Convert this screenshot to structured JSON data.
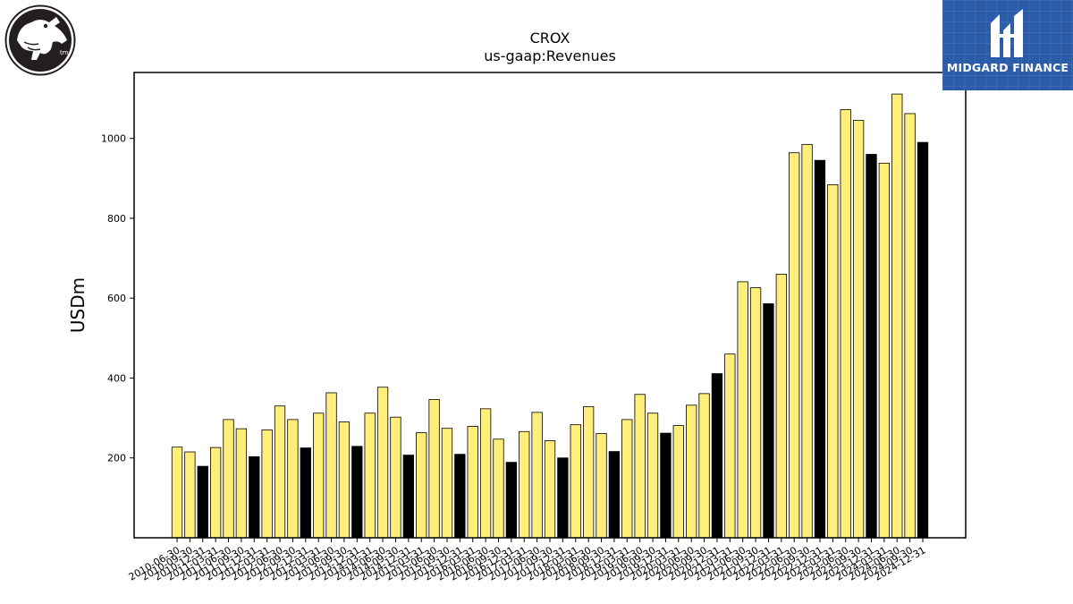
{
  "logos": {
    "right_brand": "MIDGARD FINANCE",
    "left_mark": "tm"
  },
  "colors": {
    "bar_default": "#ffee7a",
    "bar_highlight": "#000000",
    "bar_edge": "#000000",
    "brand_blue": "#2a5caa"
  },
  "chart_data": {
    "type": "bar",
    "title": "CROX",
    "subtitle": "us-gaap:Revenues",
    "ylabel": "USDm",
    "xlabel": "",
    "ylim": [
      0,
      1165
    ],
    "yticks": [
      200,
      400,
      600,
      800,
      1000
    ],
    "grid": false,
    "categories": [
      "2010-06-30",
      "2010-09-30",
      "2010-12-31",
      "2011-03-31",
      "2011-06-30",
      "2011-09-30",
      "2011-12-31",
      "2012-03-31",
      "2012-06-30",
      "2012-09-30",
      "2012-12-31",
      "2013-03-31",
      "2013-06-30",
      "2013-09-30",
      "2013-12-31",
      "2014-03-31",
      "2014-06-30",
      "2014-09-30",
      "2014-12-31",
      "2015-03-31",
      "2015-06-30",
      "2015-09-30",
      "2015-12-31",
      "2016-03-31",
      "2016-06-30",
      "2016-09-30",
      "2016-12-31",
      "2017-03-31",
      "2017-06-30",
      "2017-09-30",
      "2017-12-31",
      "2018-03-31",
      "2018-06-30",
      "2018-09-30",
      "2018-12-31",
      "2019-03-31",
      "2019-06-30",
      "2019-09-30",
      "2019-12-31",
      "2020-03-31",
      "2020-06-30",
      "2020-09-30",
      "2020-12-31",
      "2021-03-31",
      "2021-06-30",
      "2021-09-30",
      "2021-12-31",
      "2022-03-31",
      "2022-06-30",
      "2022-09-30",
      "2022-12-31",
      "2023-03-31",
      "2023-06-30",
      "2023-09-30",
      "2023-12-31",
      "2024-03-31",
      "2024-06-30",
      "2024-09-30",
      "2024-12-31"
    ],
    "values": [
      227,
      215,
      179,
      226,
      296,
      273,
      203,
      270,
      330,
      296,
      225,
      312,
      363,
      290,
      229,
      312,
      377,
      302,
      207,
      263,
      346,
      274,
      209,
      279,
      323,
      247,
      189,
      266,
      314,
      243,
      200,
      283,
      328,
      261,
      216,
      296,
      359,
      312,
      262,
      281,
      332,
      361,
      411,
      460,
      641,
      626,
      586,
      660,
      964,
      985,
      945,
      884,
      1072,
      1045,
      960,
      938,
      1111,
      1062,
      990
    ],
    "highlight_quarter": "12-31"
  }
}
